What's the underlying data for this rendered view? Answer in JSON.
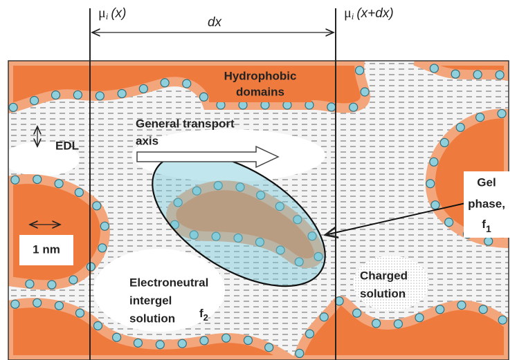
{
  "axis_labels": {
    "left": {
      "symbol": "μ",
      "subscript": "i",
      "argument": "(x)"
    },
    "right": {
      "symbol": "μ",
      "subscript": "i",
      "argument": "(x+dx)"
    },
    "interval": "dx"
  },
  "labels": {
    "hydrophobic_domains": [
      "Hydrophobic",
      "domains"
    ],
    "transport_axis": [
      "General transport",
      "axis"
    ],
    "edl": "EDL",
    "scale": "1 nm",
    "gel_phase": {
      "lines": [
        "Gel",
        "phase,"
      ],
      "symbol": "f",
      "subscript": "1"
    },
    "intergel_solution": [
      "Electroneutral",
      "intergel",
      "solution"
    ],
    "intergel_fraction": {
      "symbol": "f",
      "subscript": "2"
    },
    "charged_solution": [
      "Charged",
      "solution"
    ]
  }
}
